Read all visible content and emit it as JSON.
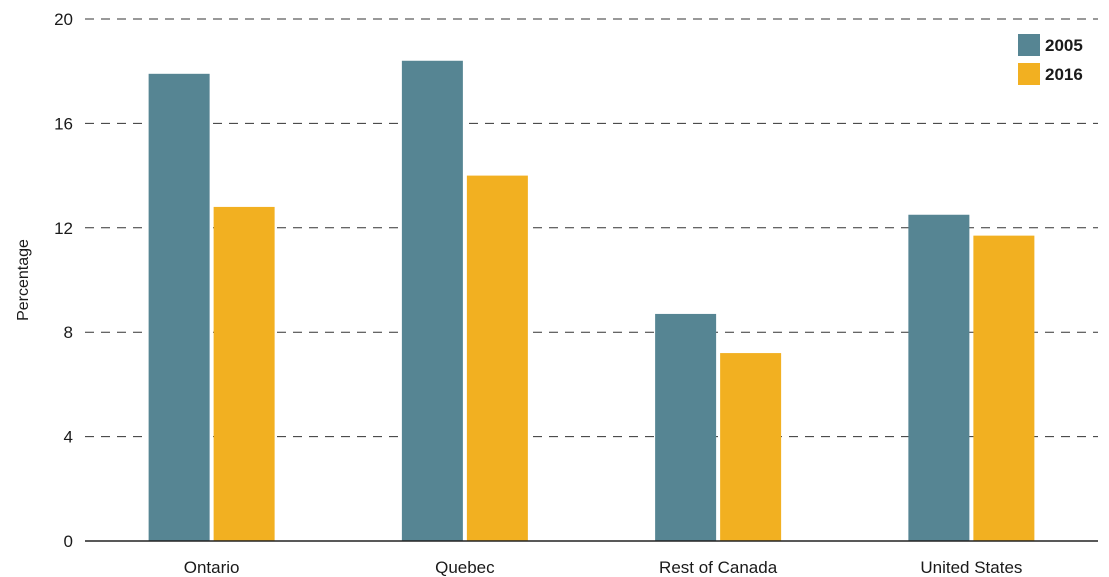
{
  "chart_data": {
    "type": "bar",
    "title": "",
    "xlabel": "",
    "ylabel": "Percentage",
    "ylim": [
      0,
      20
    ],
    "yticks": [
      0,
      4,
      8,
      12,
      16,
      20
    ],
    "grid": true,
    "legend_position": "top-right",
    "categories": [
      "Ontario",
      "Quebec",
      "Rest of Canada",
      "United States"
    ],
    "series": [
      {
        "name": "2005",
        "color": "#568593",
        "values": [
          17.9,
          18.4,
          8.7,
          12.5
        ]
      },
      {
        "name": "2016",
        "color": "#f2b021",
        "values": [
          12.8,
          14.0,
          7.2,
          11.7
        ]
      }
    ]
  }
}
